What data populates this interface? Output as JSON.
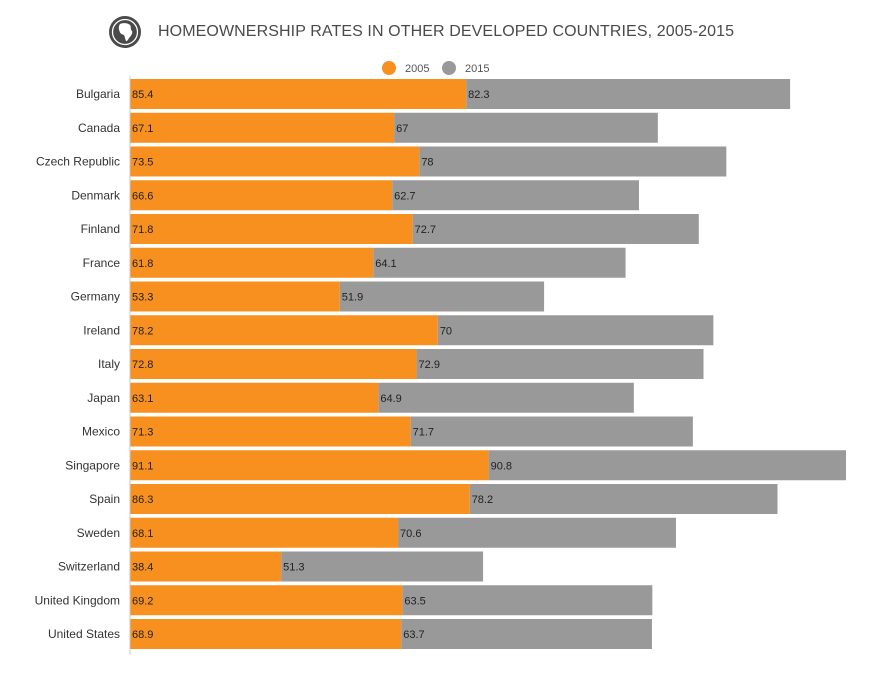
{
  "header": {
    "title": "HOMEOWNERSHIP RATES IN OTHER DEVELOPED COUNTRIES, 2005-2015",
    "icon": "globe-africa-icon"
  },
  "colors": {
    "series_2005": "#f7901e",
    "series_2015": "#999999",
    "axis": "#c9c9c9",
    "label_text": "#333333",
    "title_text": "#4a4a4a"
  },
  "chart_data": {
    "type": "bar",
    "orientation": "horizontal",
    "layout": "overlapping-stacked",
    "title": "HOMEOWNERSHIP RATES IN OTHER DEVELOPED COUNTRIES, 2005-2015",
    "legend_position": "top-center",
    "grid": false,
    "categories": [
      "Bulgaria",
      "Canada",
      "Czech Republic",
      "Denmark",
      "Finland",
      "France",
      "Germany",
      "Ireland",
      "Italy",
      "Japan",
      "Mexico",
      "Singapore",
      "Spain",
      "Sweden",
      "Switzerland",
      "United Kingdom",
      "United States"
    ],
    "series": [
      {
        "name": "2005",
        "values": [
          85.4,
          67.1,
          73.5,
          66.6,
          71.8,
          61.8,
          53.3,
          78.2,
          72.8,
          63.1,
          71.3,
          91.1,
          86.3,
          68.1,
          38.4,
          69.2,
          68.9
        ]
      },
      {
        "name": "2015",
        "values": [
          82.3,
          67,
          78,
          62.7,
          72.7,
          64.1,
          51.9,
          70,
          72.9,
          64.9,
          71.7,
          90.8,
          78.2,
          70.6,
          51.3,
          63.5,
          63.7
        ]
      }
    ],
    "xlim": [
      0,
      181.9
    ]
  }
}
